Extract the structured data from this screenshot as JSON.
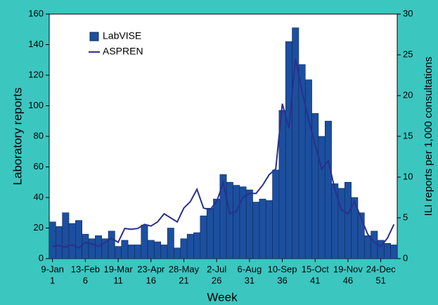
{
  "chart_data": {
    "type": "bar",
    "x_title": "Week",
    "y_title": "Laboratory reports",
    "y2_title": "ILI reports per 1,000 consultations",
    "categories": [
      "1",
      null,
      null,
      null,
      null,
      "6",
      null,
      null,
      null,
      null,
      "11",
      null,
      null,
      null,
      null,
      "16",
      null,
      null,
      null,
      null,
      "21",
      null,
      null,
      null,
      null,
      "26",
      null,
      null,
      null,
      null,
      "31",
      null,
      null,
      null,
      null,
      "36",
      null,
      null,
      null,
      null,
      "41",
      null,
      null,
      null,
      null,
      "46",
      null,
      null,
      null,
      null,
      "51",
      null,
      null
    ],
    "date_labels": [
      "9-Jan",
      null,
      null,
      null,
      null,
      "13-Feb",
      null,
      null,
      null,
      null,
      "19-Mar",
      null,
      null,
      null,
      null,
      "23-Apr",
      null,
      null,
      null,
      null,
      "28-May",
      null,
      null,
      null,
      null,
      "2-Jul",
      null,
      null,
      null,
      null,
      "6-Aug",
      null,
      null,
      null,
      null,
      "10-Sep",
      null,
      null,
      null,
      null,
      "15-Oct",
      null,
      null,
      null,
      null,
      "19-Nov",
      null,
      null,
      null,
      null,
      "24-Dec",
      null,
      null
    ],
    "series": [
      {
        "name": "LabVISE",
        "type": "bar",
        "color": "#1c4f9e",
        "values": [
          24,
          21,
          30,
          23,
          25,
          16,
          13,
          15,
          13,
          18,
          8,
          12,
          9,
          9,
          22,
          12,
          11,
          9,
          20,
          7,
          13,
          16,
          17,
          28,
          33,
          39,
          55,
          50,
          48,
          47,
          45,
          37,
          39,
          38,
          58,
          97,
          142,
          151,
          127,
          117,
          95,
          80,
          90,
          49,
          46,
          50,
          40,
          30,
          15,
          18,
          12,
          10,
          9
        ]
      },
      {
        "name": "ASPREN",
        "type": "line",
        "axis": "y2",
        "color": "#2a2f8f",
        "values": [
          1.5,
          1.6,
          1.4,
          1.7,
          1.3,
          2.0,
          1.8,
          1.5,
          2.0,
          2.5,
          2.0,
          3.7,
          3.6,
          3.7,
          4.2,
          4.0,
          4.5,
          5.5,
          5.0,
          4.5,
          6.2,
          7.0,
          8.5,
          6.2,
          6.0,
          7.0,
          9.3,
          5.5,
          5.8,
          7.5,
          8.0,
          8.0,
          9.0,
          10.3,
          11.0,
          19.0,
          16.0,
          24.5,
          20.5,
          17.0,
          14.0,
          11.0,
          12.0,
          8.5,
          6.0,
          5.5,
          7.0,
          5.0,
          3.0,
          2.0,
          1.5,
          2.5,
          4.2
        ]
      }
    ],
    "ylim": [
      0,
      160
    ],
    "yticks": [
      0,
      20,
      40,
      60,
      80,
      100,
      120,
      140,
      160
    ],
    "y2lim": [
      0,
      30
    ],
    "y2ticks": [
      0,
      5,
      10,
      15,
      20,
      25,
      30
    ],
    "legend": "upper-left"
  }
}
